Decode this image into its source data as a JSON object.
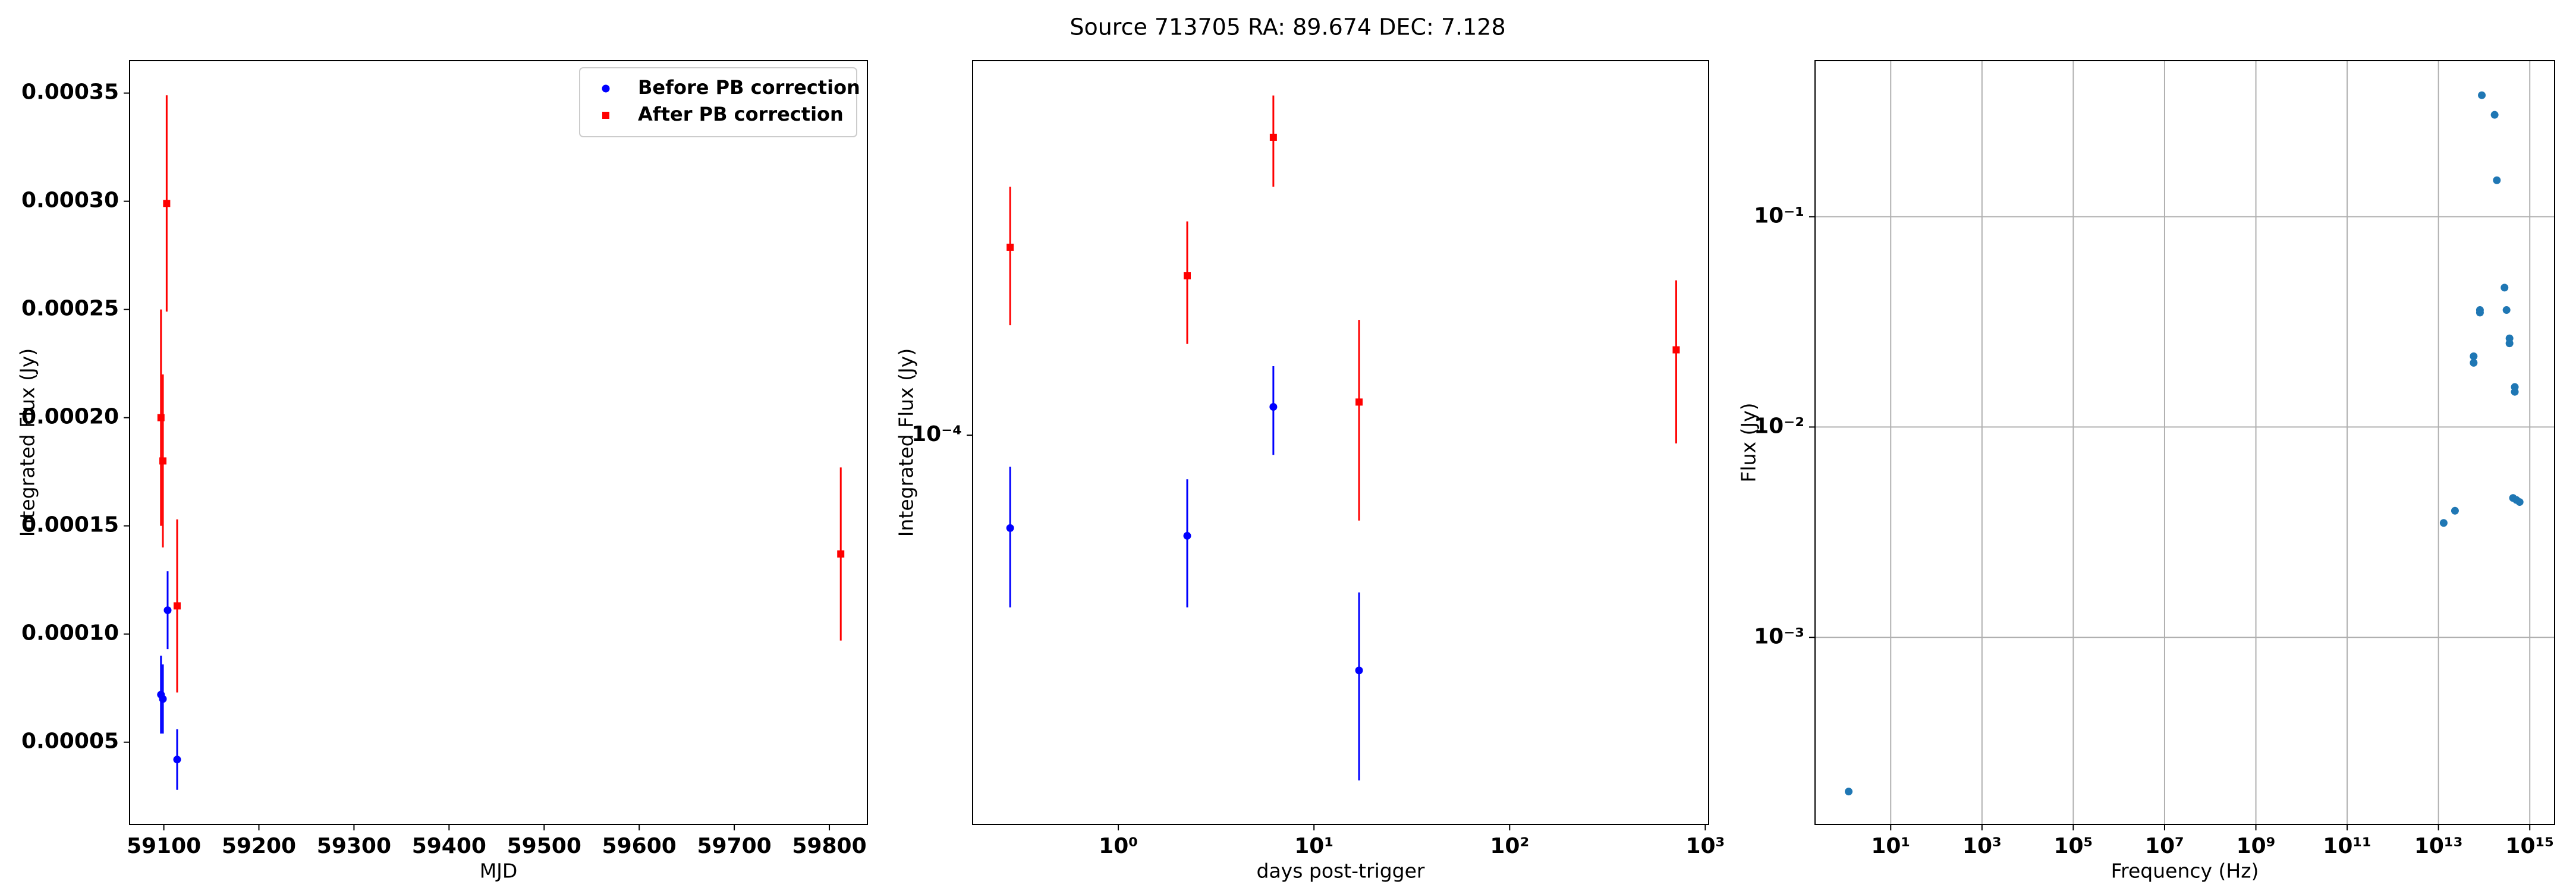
{
  "title": "Source 713705 RA: 89.674 DEC: 7.128",
  "chart_data": [
    {
      "type": "errorbar",
      "xlabel": "MJD",
      "ylabel": "Integrated Flux (Jy)",
      "xlim": [
        59064,
        59840
      ],
      "ylim": [
        1.2e-05,
        0.000365
      ],
      "xticks": [
        59100,
        59200,
        59300,
        59400,
        59500,
        59600,
        59700,
        59800
      ],
      "yticks": [
        5e-05,
        {
          "value": 0.0001,
          "label": "0.00010"
        },
        0.00015,
        {
          "value": 0.0002,
          "label": "0.00020"
        },
        0.00025,
        {
          "value": 0.0003,
          "label": "0.00030"
        },
        0.00035
      ],
      "legend": "upper right",
      "series": [
        {
          "name": "Before PB correction",
          "color": "#0000ff",
          "marker": "o",
          "x": [
            59097,
            59099,
            59104,
            59114
          ],
          "values": [
            7.2e-05,
            7e-05,
            0.000111,
            4.2e-05
          ],
          "errors": [
            1.8e-05,
            1.6e-05,
            1.8e-05,
            1.4e-05
          ]
        },
        {
          "name": "After PB correction",
          "color": "#ff0000",
          "marker": "s",
          "x": [
            59097,
            59099,
            59103,
            59114,
            59812
          ],
          "values": [
            0.0002,
            0.00018,
            0.000299,
            0.000113,
            0.000137
          ],
          "errors": [
            5e-05,
            4e-05,
            5e-05,
            4e-05,
            4e-05
          ]
        }
      ]
    },
    {
      "type": "errorbar",
      "xlabel": "days post-trigger",
      "ylabel": "Integrated Flux (Jy)",
      "xscale": "log",
      "yscale": "log",
      "xlim": [
        0.18,
        1040
      ],
      "ylim": [
        2.38e-05,
        0.000398
      ],
      "xticks": [
        {
          "value": 1,
          "label": "10⁰"
        },
        {
          "value": 10,
          "label": "10¹"
        },
        {
          "value": 100,
          "label": "10²"
        },
        {
          "value": 1000,
          "label": "10³"
        }
      ],
      "yticks": [
        {
          "value": 0.0001,
          "label": "10⁻⁴"
        }
      ],
      "series": [
        {
          "color": "#0000ff",
          "marker": "o",
          "x": [
            0.28,
            2.25,
            6.2,
            17
          ],
          "values": [
            7.1e-05,
            6.9e-05,
            0.000111,
            4.2e-05
          ],
          "errors": [
            1.8e-05,
            1.6e-05,
            1.8e-05,
            1.4e-05
          ]
        },
        {
          "color": "#ff0000",
          "marker": "s",
          "x": [
            0.28,
            2.25,
            6.2,
            17,
            710
          ],
          "values": [
            0.0002,
            0.00018,
            0.0003,
            0.000113,
            0.000137
          ],
          "errors": [
            5e-05,
            4e-05,
            5e-05,
            4e-05,
            4e-05
          ]
        }
      ]
    },
    {
      "type": "scatter",
      "xlabel": "Frequency (Hz)",
      "ylabel": "Flux (Jy)",
      "xscale": "log",
      "yscale": "log",
      "grid": true,
      "color": "#1f77b4",
      "xlim": [
        0.22,
        3500000000000000.0
      ],
      "ylim": [
        0.000129,
        0.552
      ],
      "xticks": [
        {
          "value": 10,
          "label": "10¹"
        },
        {
          "value": 1000,
          "label": "10³"
        },
        {
          "value": 100000,
          "label": "10⁵"
        },
        {
          "value": 10000000,
          "label": "10⁷"
        },
        {
          "value": 1000000000,
          "label": "10⁹"
        },
        {
          "value": 100000000000,
          "label": "10¹¹"
        },
        {
          "value": 10000000000000,
          "label": "10¹³"
        },
        {
          "value": 1000000000000000,
          "label": "10¹⁵"
        }
      ],
      "yticks": [
        {
          "value": 0.001,
          "label": "10⁻³"
        },
        {
          "value": 0.01,
          "label": "10⁻²"
        },
        {
          "value": 0.1,
          "label": "10⁻¹"
        }
      ],
      "x": [
        1.2,
        13000000000000.0,
        23000000000000.0,
        59000000000000.0,
        59000000000000.0,
        81000000000000.0,
        81000000000000.0,
        89000000000000.0,
        170000000000000.0,
        190000000000000.0,
        280000000000000.0,
        310000000000000.0,
        360000000000000.0,
        360000000000000.0,
        470000000000000.0,
        470000000000000.0,
        430000000000000.0,
        510000000000000.0,
        600000000000000.0
      ],
      "values": [
        0.000185,
        0.0035,
        0.004,
        0.0202,
        0.0217,
        0.035,
        0.036,
        0.378,
        0.305,
        0.149,
        0.046,
        0.036,
        0.0264,
        0.025,
        0.0155,
        0.0147,
        0.0046,
        0.0045,
        0.0044
      ]
    }
  ]
}
